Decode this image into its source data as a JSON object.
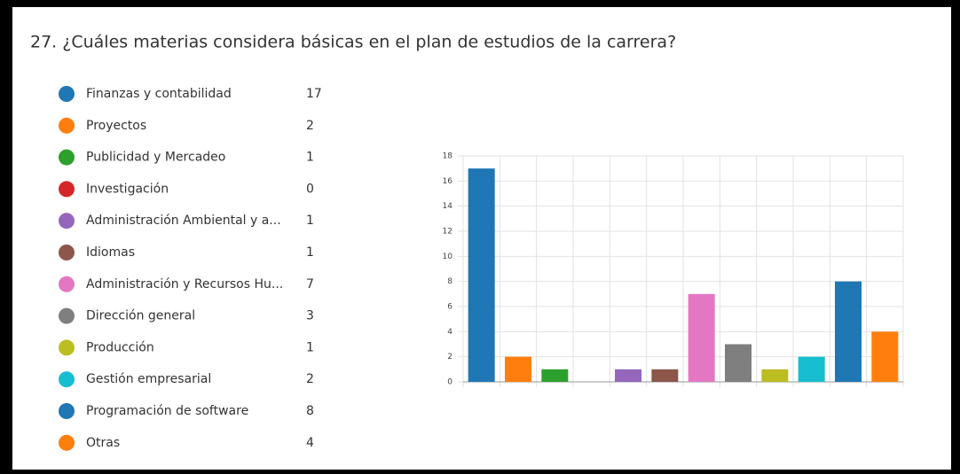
{
  "chart_data": {
    "type": "bar",
    "title": "27.  ¿Cuáles materias considera básicas en el plan de estudios de la carrera?",
    "categories": [
      "Finanzas y contabilidad",
      "Proyectos",
      "Publicidad y Mercadeo",
      "Investigación",
      "Administración Ambiental y a...",
      "Idiomas",
      "Administración y Recursos Hu...",
      "Dirección general",
      "Producción",
      "Gestión empresarial",
      "Programación de software",
      "Otras"
    ],
    "values": [
      17,
      2,
      1,
      0,
      1,
      1,
      7,
      3,
      1,
      2,
      8,
      4
    ],
    "colors": [
      "#1f77b4",
      "#ff7f0e",
      "#2ca02c",
      "#d62728",
      "#9467bd",
      "#8c564b",
      "#e377c2",
      "#7f7f7f",
      "#bcbd22",
      "#17becf",
      "#1f77b4",
      "#ff7f0e"
    ],
    "ylim": [
      0,
      18
    ],
    "yticks": [
      0,
      2,
      4,
      6,
      8,
      10,
      12,
      14,
      16,
      18
    ],
    "grid": true
  }
}
